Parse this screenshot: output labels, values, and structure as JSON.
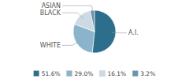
{
  "chart_data": {
    "type": "pie",
    "categories": [
      "A.I.",
      "WHITE",
      "BLACK",
      "ASIAN"
    ],
    "values": [
      51.6,
      29.0,
      16.1,
      3.2
    ],
    "value_labels": [
      "51.6%",
      "29.0%",
      "16.1%",
      "3.2%"
    ],
    "colors": [
      "#2d6e8d",
      "#8ab4cb",
      "#cddae4",
      "#6a94ad"
    ],
    "legend": "bottom"
  }
}
